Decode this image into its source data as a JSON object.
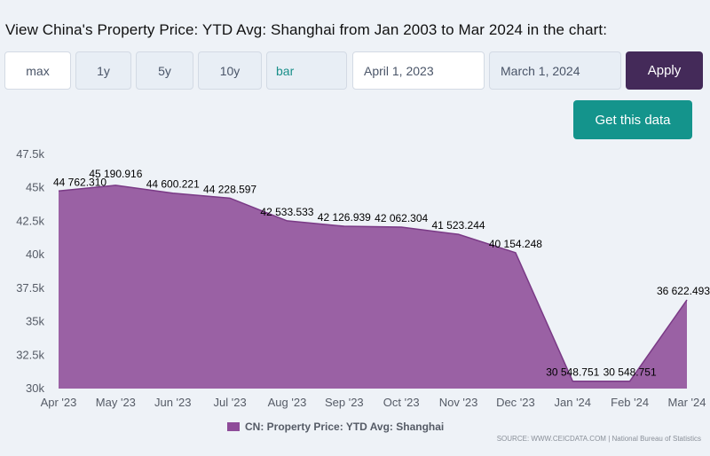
{
  "heading": "View China's Property Price: YTD Avg: Shanghai from Jan 2003 to Mar 2024 in the chart:",
  "range_buttons": [
    "max",
    "1y",
    "5y",
    "10y"
  ],
  "chart_type_select": "bar",
  "date_from": "April 1, 2023",
  "date_to": "March 1, 2024",
  "apply_label": "Apply",
  "get_data_label": "Get this data",
  "colors": {
    "series": "#8e4c99",
    "apply": "#442a59",
    "get_data": "#14948c"
  },
  "chart_data": {
    "type": "area",
    "x": [
      "Apr '23",
      "May '23",
      "Jun '23",
      "Jul '23",
      "Aug '23",
      "Sep '23",
      "Oct '23",
      "Nov '23",
      "Dec '23",
      "Jan '24",
      "Feb '24",
      "Mar '24"
    ],
    "series": [
      {
        "name": "CN: Property Price: YTD Avg: Shanghai",
        "values": [
          44762.31,
          45190.916,
          44600.221,
          44228.597,
          42533.533,
          42126.939,
          42062.304,
          41523.244,
          40154.248,
          30548.751,
          30548.751,
          36622.493
        ],
        "labels": [
          "44 762.310",
          "45 190.916",
          "44 600.221",
          "44 228.597",
          "42 533.533",
          "42 126.939",
          "42 062.304",
          "41 523.244",
          "40 154.248",
          "30 548.751",
          "30 548.751",
          "36 622.493"
        ]
      }
    ],
    "yticks": [
      "30k",
      "32.5k",
      "35k",
      "37.5k",
      "40k",
      "42.5k",
      "45k",
      "47.5k"
    ],
    "ytick_values": [
      30000,
      32500,
      35000,
      37500,
      40000,
      42500,
      45000,
      47500
    ],
    "ylim": [
      30000,
      47500
    ],
    "grid": false,
    "legend_position": "bottom"
  },
  "source": "SOURCE: WWW.CEICDATA.COM | National Bureau of Statistics"
}
